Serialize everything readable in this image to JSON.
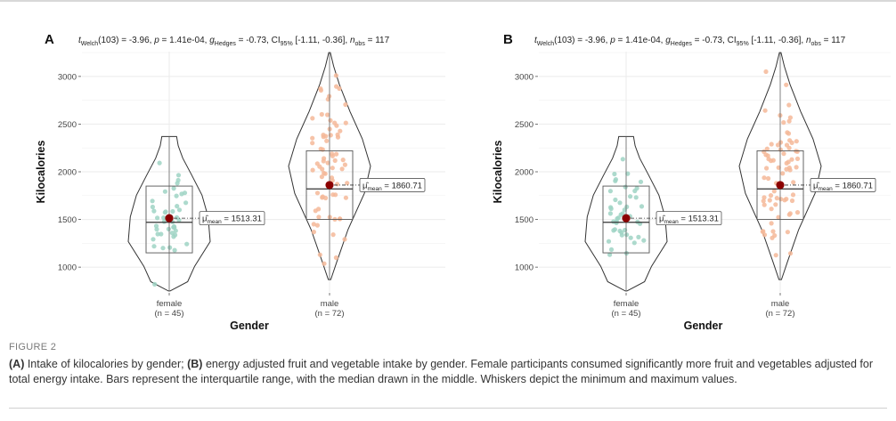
{
  "figure_label": "FIGURE 2",
  "caption": {
    "part_a_letter": "(A)",
    "part_a_text": " Intake of kilocalories by gender; ",
    "part_b_letter": "(B)",
    "part_b_text": " energy adjusted fruit and vegetable intake by gender. Female participants consumed significantly more fruit and vegetables adjusted for total energy intake. Bars represent the interquartile range, with the median drawn in the middle. Whiskers depict the minimum and maximum values."
  },
  "colors": {
    "female_points": "#9fd3c4",
    "male_points": "#f4b899",
    "mean_point": "#8b0000",
    "grid": "#ebebeb",
    "outline": "#333333"
  },
  "chart_data": [
    {
      "panel": "A",
      "type": "violin",
      "subtitle": "t_Welch(103) = -3.96, p = 1.41e-04, g_Hedges = -0.73, CI95% [-1.11, -0.36], n_obs = 117",
      "xlabel": "Gender",
      "ylabel": "Kilocalories",
      "ylim": [
        740,
        3260
      ],
      "yticks": [
        1000,
        1500,
        2000,
        2500,
        3000
      ],
      "grid": true,
      "categories": [
        "female",
        "male"
      ],
      "category_n": [
        "(n = 45)",
        "(n = 72)"
      ],
      "groups": [
        {
          "name": "female",
          "min": 750,
          "q1": 1150,
          "median": 1470,
          "q3": 1850,
          "max": 2370,
          "mean": 1513.31,
          "mean_label": "= 1513.31"
        },
        {
          "name": "male",
          "min": 870,
          "q1": 1500,
          "median": 1820,
          "q3": 2220,
          "max": 3250,
          "mean": 1860.71,
          "mean_label": "= 1860.71"
        }
      ]
    },
    {
      "panel": "B",
      "type": "violin",
      "subtitle": "t_Welch(103) = -3.96, p = 1.41e-04, g_Hedges = -0.73, CI95% [-1.11, -0.36], n_obs = 117",
      "xlabel": "Gender",
      "ylabel": "Kilocalories",
      "ylim": [
        740,
        3260
      ],
      "yticks": [
        1000,
        1500,
        2000,
        2500,
        3000
      ],
      "grid": true,
      "categories": [
        "female",
        "male"
      ],
      "category_n": [
        "(n = 45)",
        "(n = 72)"
      ],
      "groups": [
        {
          "name": "female",
          "min": 750,
          "q1": 1150,
          "median": 1470,
          "q3": 1850,
          "max": 2370,
          "mean": 1513.31,
          "mean_label": "= 1513.31"
        },
        {
          "name": "male",
          "min": 870,
          "q1": 1500,
          "median": 1820,
          "q3": 2220,
          "max": 3250,
          "mean": 1860.71,
          "mean_label": "= 1860.71"
        }
      ]
    }
  ]
}
